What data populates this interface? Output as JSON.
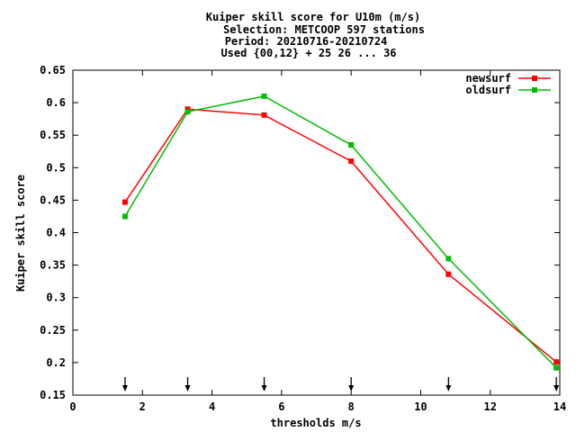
{
  "chart_data": {
    "type": "line",
    "title_lines": [
      "Kuiper skill score  for U10m (m/s)",
      "Selection: METCOOP    597 stations",
      "Period: 20210716-20210724",
      "Used {00,12} + 25 26 ... 36"
    ],
    "xlabel": "thresholds m/s",
    "ylabel": "Kuiper skill score",
    "xlim": [
      0,
      14
    ],
    "ylim": [
      0.15,
      0.65
    ],
    "x_ticks": [
      0,
      2,
      4,
      6,
      8,
      10,
      12,
      14
    ],
    "y_ticks": [
      0.15,
      0.2,
      0.25,
      0.3,
      0.35,
      0.4,
      0.45,
      0.5,
      0.55,
      0.6,
      0.65
    ],
    "x_tick_labels": [
      "0",
      "2",
      "4",
      "6",
      "8",
      "10",
      "12",
      "14"
    ],
    "y_tick_labels": [
      "0.15",
      "0.2",
      "0.25",
      "0.3",
      "0.35",
      "0.4",
      "0.45",
      "0.5",
      "0.55",
      "0.6",
      "0.65"
    ],
    "threshold_arrows": [
      1.5,
      3.3,
      5.5,
      8.0,
      10.8,
      13.9
    ],
    "legend_position": "top-right",
    "grid": false,
    "series": [
      {
        "name": "newsurf",
        "color": "#ff0000",
        "x": [
          1.5,
          3.3,
          5.5,
          8.0,
          10.8,
          13.9
        ],
        "y": [
          0.447,
          0.59,
          0.581,
          0.51,
          0.336,
          0.201
        ]
      },
      {
        "name": "oldsurf",
        "color": "#00bb00",
        "x": [
          1.5,
          3.3,
          5.5,
          8.0,
          10.8,
          13.9
        ],
        "y": [
          0.425,
          0.586,
          0.61,
          0.535,
          0.36,
          0.192
        ]
      }
    ]
  }
}
